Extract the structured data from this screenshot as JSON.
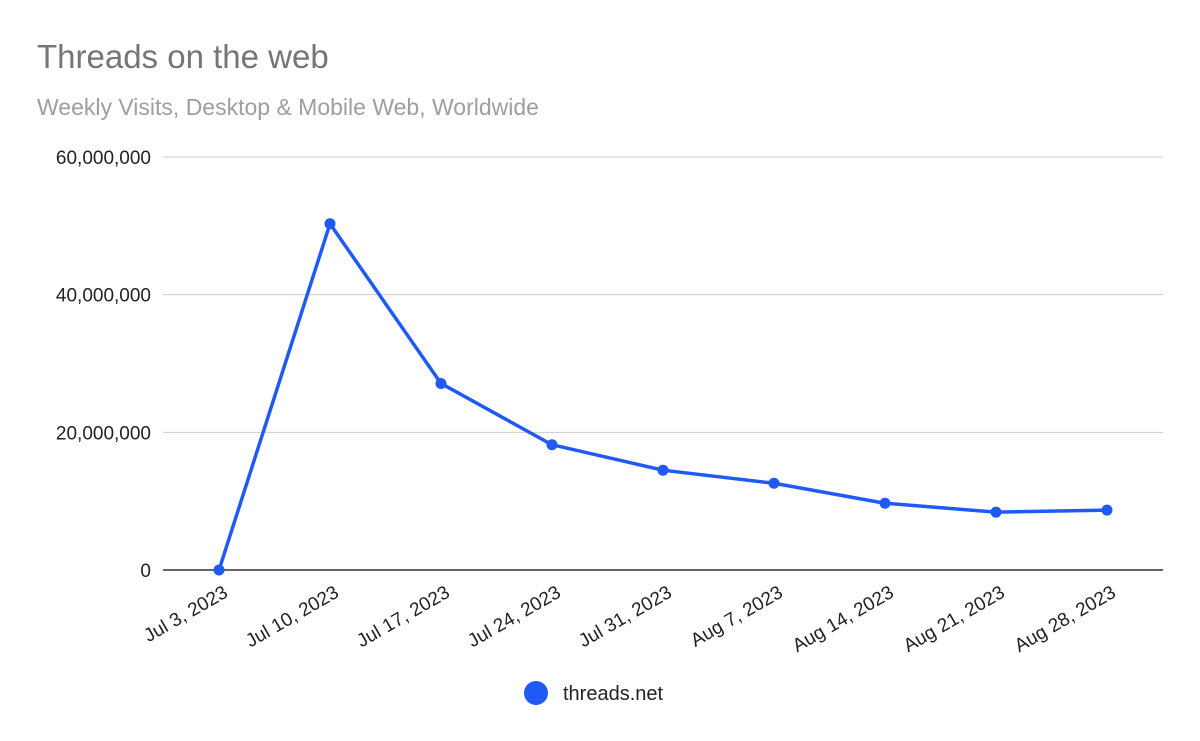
{
  "chart_data": {
    "type": "line",
    "title": "Threads on the web",
    "subtitle": "Weekly Visits, Desktop & Mobile Web, Worldwide",
    "xlabel": "",
    "ylabel": "",
    "categories": [
      "Jul 3, 2023",
      "Jul 10, 2023",
      "Jul 17, 2023",
      "Jul 24, 2023",
      "Jul 31, 2023",
      "Aug 7, 2023",
      "Aug 14, 2023",
      "Aug 21, 2023",
      "Aug 28, 2023"
    ],
    "series": [
      {
        "name": "threads.net",
        "color": "#1f5af5",
        "values": [
          0,
          50300000,
          27100000,
          18200000,
          14500000,
          12600000,
          9700000,
          8400000,
          8700000
        ]
      }
    ],
    "ylim": [
      0,
      60000000
    ],
    "yticks": [
      0,
      20000000,
      40000000,
      60000000
    ],
    "ytick_labels": [
      "0",
      "20,000,000",
      "40,000,000",
      "60,000,000"
    ],
    "grid": true,
    "legend": "bottom"
  },
  "colors": {
    "series": "#1f5af5",
    "grid": "#cccccc",
    "axis": "#333333",
    "title": "#757575",
    "subtitle": "#9e9e9e"
  }
}
